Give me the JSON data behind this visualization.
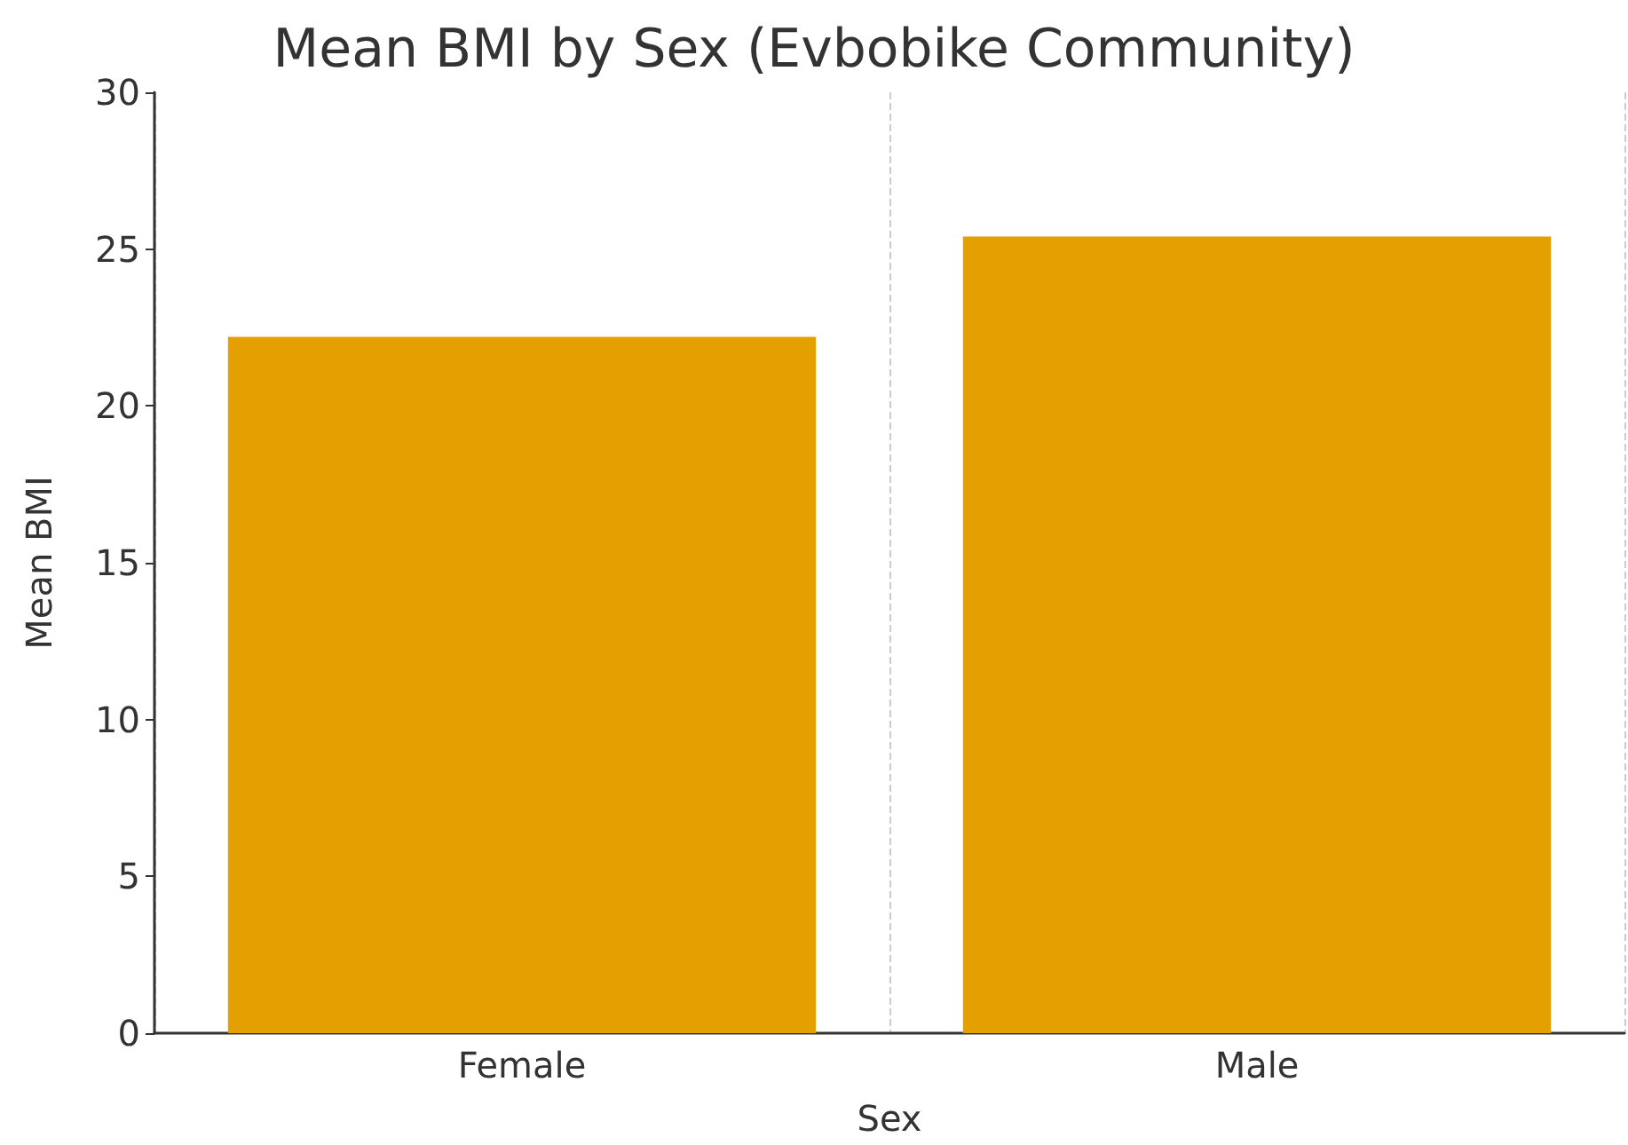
{
  "chart_data": {
    "type": "bar",
    "title": "Mean BMI by Sex (Evbobike Community)",
    "xlabel": "Sex",
    "ylabel": "Mean BMI",
    "categories": [
      "Female",
      "Male"
    ],
    "series": [
      {
        "color": "#e3a000",
        "values": [
          22.2,
          25.4
        ]
      }
    ],
    "ylim": [
      0,
      30
    ],
    "yticks": [
      0,
      5,
      10,
      15,
      20,
      25,
      30
    ],
    "grid": "x"
  }
}
